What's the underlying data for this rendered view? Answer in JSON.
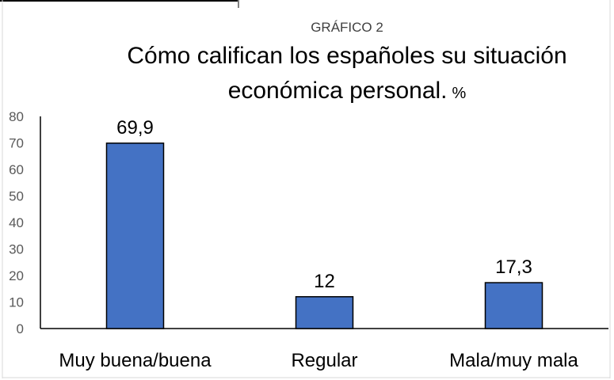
{
  "chart_data": {
    "type": "bar",
    "supertitle": "GRÁFICO 2",
    "title_line1": "Cómo califican los españoles su situación",
    "title_line2": "económica personal.",
    "title_suffix": "%",
    "categories": [
      "Muy buena/buena",
      "Regular",
      "Mala/muy mala"
    ],
    "values": [
      69.9,
      12,
      17.3
    ],
    "data_labels": [
      "69,9",
      "12",
      "17,3"
    ],
    "ylim": [
      0,
      80
    ],
    "yticks": [
      0,
      10,
      20,
      30,
      40,
      50,
      60,
      70,
      80
    ],
    "bar_color": "#4472c4",
    "bar_edge_color": "#000000",
    "grid": false,
    "legend": "none"
  }
}
